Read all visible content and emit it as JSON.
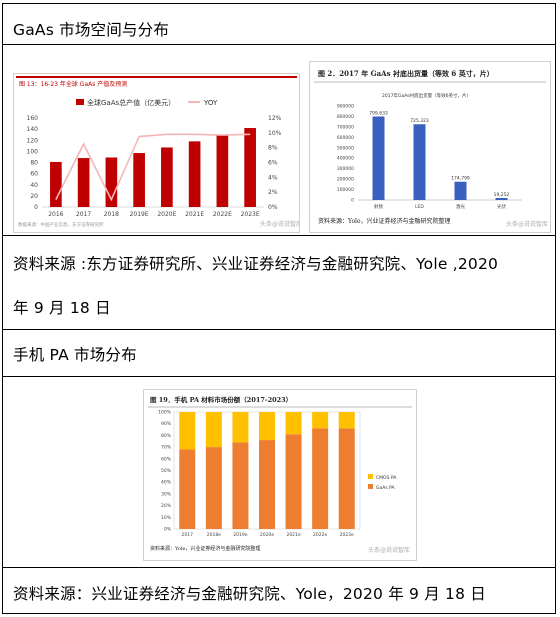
{
  "rows": [
    {
      "text": "GaAs 市场空间与分布"
    },
    {
      "text_line1": "资料来源 :东方证券研究所、兴业证券经济与金融研究院、Yole ,2020",
      "text_line2": "年 9 月 18 日"
    },
    {
      "text": "手机 PA 市场分布"
    },
    {
      "text": "资料来源：兴业证券经济与金融研究院、Yole，2020 年 9 月 18 日"
    }
  ],
  "chart1": {
    "title": "图 13：16-23 年全球 GaAs 产值及预测",
    "legend": {
      "bar": "全球GaAs总产值（亿美元）",
      "line": "YOY"
    },
    "categories": [
      "2016",
      "2017",
      "2018",
      "2019E",
      "2020E",
      "2021E",
      "2022E",
      "2023E"
    ],
    "left_ticks": [
      "0",
      "20",
      "40",
      "60",
      "80",
      "100",
      "120",
      "140",
      "160"
    ],
    "right_ticks": [
      "0%",
      "2%",
      "4%",
      "6%",
      "8%",
      "10%",
      "12%"
    ],
    "source": "数据来源：中国产业信息，东方证券研究所",
    "watermark": "头条@说说智库",
    "colors": {
      "bar": "#c00000",
      "line": "#f4b6b6"
    }
  },
  "chart2": {
    "title": "图 2．2017 年 GaAs 衬底出货量（等效 6 英寸，片）",
    "inner_title": "2017年GaAs衬底出货量（等效6英寸，片）",
    "categories": [
      "射频",
      "LED",
      "激光",
      "光伏"
    ],
    "value_labels": [
      "799,633",
      "725,323",
      "174,799",
      "19,252"
    ],
    "ticks": [
      "0",
      "100000",
      "200000",
      "300000",
      "400000",
      "500000",
      "600000",
      "700000",
      "800000",
      "900000"
    ],
    "source": "资料来源：Yole，兴业证券经济与金融研究院整理",
    "watermark": "头条@说说智库",
    "colors": {
      "bar": "#3a5fbf"
    }
  },
  "chart3": {
    "title": "图 19．手机 PA 材料市场份额（2017-2023）",
    "categories": [
      "2017",
      "2018e",
      "2019e",
      "2020e",
      "2021e",
      "2022e",
      "2023e"
    ],
    "ticks": [
      "0%",
      "10%",
      "20%",
      "30%",
      "40%",
      "50%",
      "60%",
      "70%",
      "80%",
      "90%",
      "100%"
    ],
    "legend": [
      "CMOS PA",
      "GaAs PA"
    ],
    "source": "资料来源：Yole，兴业证券经济与金融研究院整理",
    "watermark": "头条@说说智库",
    "colors": {
      "cmos": "#ffc000",
      "gaas": "#ed7d31"
    }
  },
  "chart_data": [
    {
      "type": "bar",
      "title": "图 13：16-23 年全球 GaAs 产值及预测",
      "categories": [
        "2016",
        "2017",
        "2018",
        "2019E",
        "2020E",
        "2021E",
        "2022E",
        "2023E"
      ],
      "series": [
        {
          "name": "全球GaAs总产值（亿美元）",
          "type": "bar",
          "axis": "left",
          "values": [
            81,
            88,
            89,
            97,
            107,
            118,
            130,
            142
          ]
        },
        {
          "name": "YOY",
          "type": "line",
          "axis": "right",
          "values": [
            1.0,
            8.5,
            1.0,
            9.5,
            9.8,
            9.8,
            9.7,
            9.8
          ]
        }
      ],
      "ylim_left": [
        0,
        160
      ],
      "ylim_right": [
        0,
        12
      ],
      "legend": "top"
    },
    {
      "type": "bar",
      "title": "2017年GaAs衬底出货量（等效6英寸，片）",
      "categories": [
        "射频",
        "LED",
        "激光",
        "光伏"
      ],
      "values": [
        799633,
        725323,
        174799,
        19252
      ],
      "ylim": [
        0,
        900000
      ]
    },
    {
      "type": "bar",
      "title": "图 19．手机 PA 材料市场份额（2017-2023）",
      "categories": [
        "2017",
        "2018e",
        "2019e",
        "2020e",
        "2021e",
        "2022e",
        "2023e"
      ],
      "series": [
        {
          "name": "GaAs PA",
          "values": [
            68,
            70,
            74,
            76,
            81,
            86,
            86
          ]
        },
        {
          "name": "CMOS PA",
          "values": [
            32,
            30,
            26,
            24,
            19,
            14,
            14
          ]
        }
      ],
      "stacked": true,
      "ylim": [
        0,
        100
      ],
      "legend": "right"
    }
  ]
}
